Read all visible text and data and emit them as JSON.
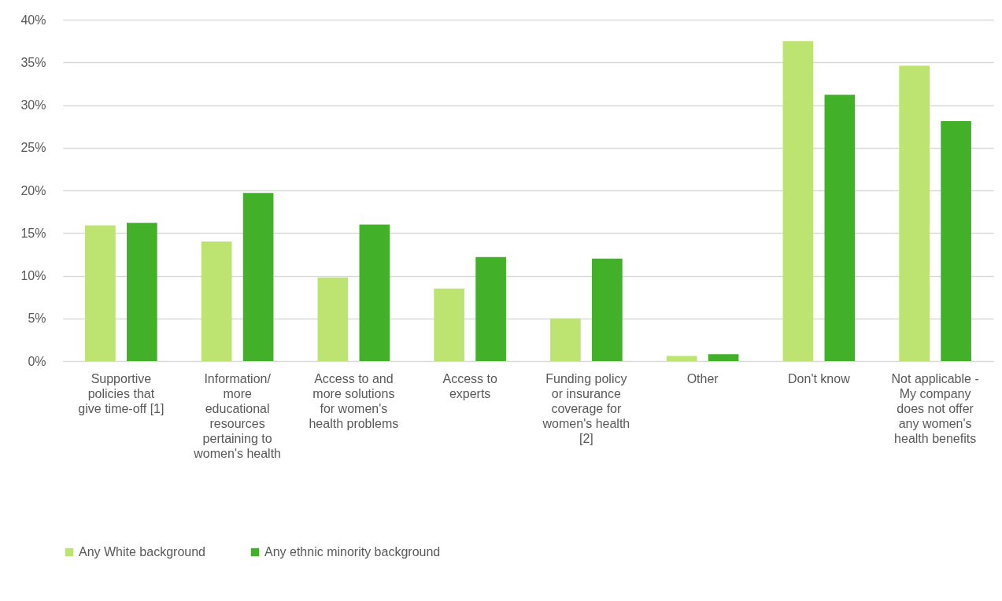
{
  "chart_data": {
    "type": "bar",
    "categories": [
      "Supportive policies that give time-off [1]",
      "Information/ more educational resources pertaining to women's health",
      "Access to and more solutions for women's health problems",
      "Access to experts",
      "Funding policy or insurance coverage for women's health [2]",
      "Other",
      "Don't know",
      "Not applicable - My company does not offer any women's health benefits"
    ],
    "series": [
      {
        "name": "Any White background",
        "color": "#bde371",
        "values": [
          15.9,
          14.0,
          9.8,
          8.5,
          5.0,
          0.6,
          37.5,
          34.6
        ]
      },
      {
        "name": "Any ethnic minority background",
        "color": "#43b02a",
        "values": [
          16.2,
          19.7,
          16.0,
          12.2,
          12.0,
          0.8,
          31.2,
          28.1
        ]
      }
    ],
    "ylim": [
      0,
      40
    ],
    "yticks": [
      {
        "value": 0,
        "label": "0%"
      },
      {
        "value": 5,
        "label": "5%"
      },
      {
        "value": 10,
        "label": "10%"
      },
      {
        "value": 15,
        "label": "15%"
      },
      {
        "value": 20,
        "label": "20%"
      },
      {
        "value": 25,
        "label": "25%"
      },
      {
        "value": 30,
        "label": "30%"
      },
      {
        "value": 35,
        "label": "35%"
      },
      {
        "value": 40,
        "label": "40%"
      }
    ],
    "grid": "y",
    "legend": "bottom"
  }
}
